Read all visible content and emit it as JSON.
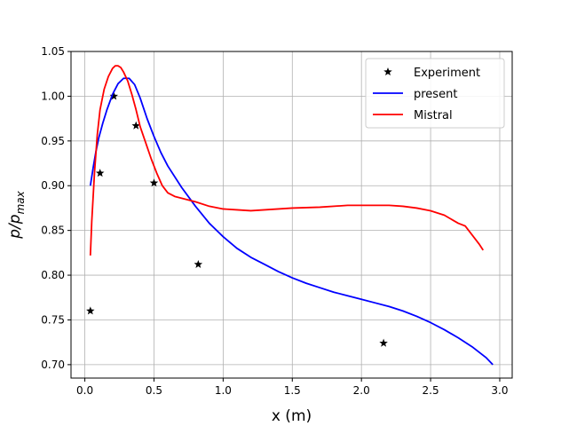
{
  "chart_data": {
    "type": "line",
    "title": "",
    "xlabel": "x (m)",
    "ylabel_main": "p/p",
    "ylabel_sub": "max",
    "xlim": [
      -0.1,
      3.09
    ],
    "ylim": [
      0.685,
      1.05
    ],
    "xticks": [
      0.0,
      0.5,
      1.0,
      1.5,
      2.0,
      2.5,
      3.0
    ],
    "xtick_labels": [
      "0.0",
      "0.5",
      "1.0",
      "1.5",
      "2.0",
      "2.5",
      "3.0"
    ],
    "yticks": [
      0.7,
      0.75,
      0.8,
      0.85,
      0.9,
      0.95,
      1.0,
      1.05
    ],
    "ytick_labels": [
      "0.70",
      "0.75",
      "0.80",
      "0.85",
      "0.90",
      "0.95",
      "1.00",
      "1.05"
    ],
    "grid": true,
    "legend_position": "top-right",
    "series": [
      {
        "name": "Experiment",
        "kind": "scatter",
        "marker": "star",
        "color": "#000000",
        "x": [
          0.04,
          0.11,
          0.21,
          0.37,
          0.5,
          0.82,
          2.16
        ],
        "y": [
          0.76,
          0.914,
          1.0,
          0.967,
          0.903,
          0.812,
          0.724
        ]
      },
      {
        "name": "present",
        "kind": "line",
        "color": "#0000ff",
        "x": [
          0.04,
          0.06,
          0.08,
          0.1,
          0.13,
          0.16,
          0.2,
          0.24,
          0.28,
          0.32,
          0.36,
          0.4,
          0.45,
          0.5,
          0.55,
          0.6,
          0.7,
          0.8,
          0.9,
          1.0,
          1.1,
          1.2,
          1.3,
          1.4,
          1.5,
          1.6,
          1.7,
          1.8,
          1.9,
          2.0,
          2.1,
          2.2,
          2.3,
          2.4,
          2.5,
          2.6,
          2.7,
          2.8,
          2.9,
          2.95
        ],
        "y": [
          0.9,
          0.92,
          0.938,
          0.953,
          0.97,
          0.985,
          1.002,
          1.014,
          1.02,
          1.02,
          1.013,
          0.998,
          0.975,
          0.955,
          0.937,
          0.922,
          0.898,
          0.877,
          0.858,
          0.843,
          0.83,
          0.82,
          0.812,
          0.804,
          0.797,
          0.791,
          0.786,
          0.781,
          0.777,
          0.773,
          0.769,
          0.765,
          0.76,
          0.754,
          0.747,
          0.739,
          0.73,
          0.72,
          0.708,
          0.7
        ]
      },
      {
        "name": "Mistral",
        "kind": "line",
        "color": "#ff0000",
        "x": [
          0.04,
          0.05,
          0.07,
          0.09,
          0.11,
          0.14,
          0.17,
          0.2,
          0.22,
          0.24,
          0.26,
          0.28,
          0.31,
          0.34,
          0.37,
          0.4,
          0.44,
          0.48,
          0.52,
          0.56,
          0.6,
          0.65,
          0.7,
          0.75,
          0.8,
          0.9,
          1.0,
          1.1,
          1.2,
          1.3,
          1.5,
          1.7,
          1.9,
          2.0,
          2.1,
          2.2,
          2.3,
          2.4,
          2.5,
          2.6,
          2.7,
          2.75,
          2.8,
          2.85,
          2.88
        ],
        "y": [
          0.822,
          0.86,
          0.915,
          0.957,
          0.985,
          1.008,
          1.022,
          1.031,
          1.034,
          1.034,
          1.032,
          1.027,
          1.017,
          1.002,
          0.985,
          0.966,
          0.948,
          0.93,
          0.914,
          0.9,
          0.892,
          0.888,
          0.886,
          0.884,
          0.882,
          0.877,
          0.874,
          0.873,
          0.872,
          0.873,
          0.875,
          0.876,
          0.878,
          0.878,
          0.878,
          0.878,
          0.877,
          0.875,
          0.872,
          0.867,
          0.858,
          0.855,
          0.845,
          0.835,
          0.828
        ]
      }
    ]
  }
}
